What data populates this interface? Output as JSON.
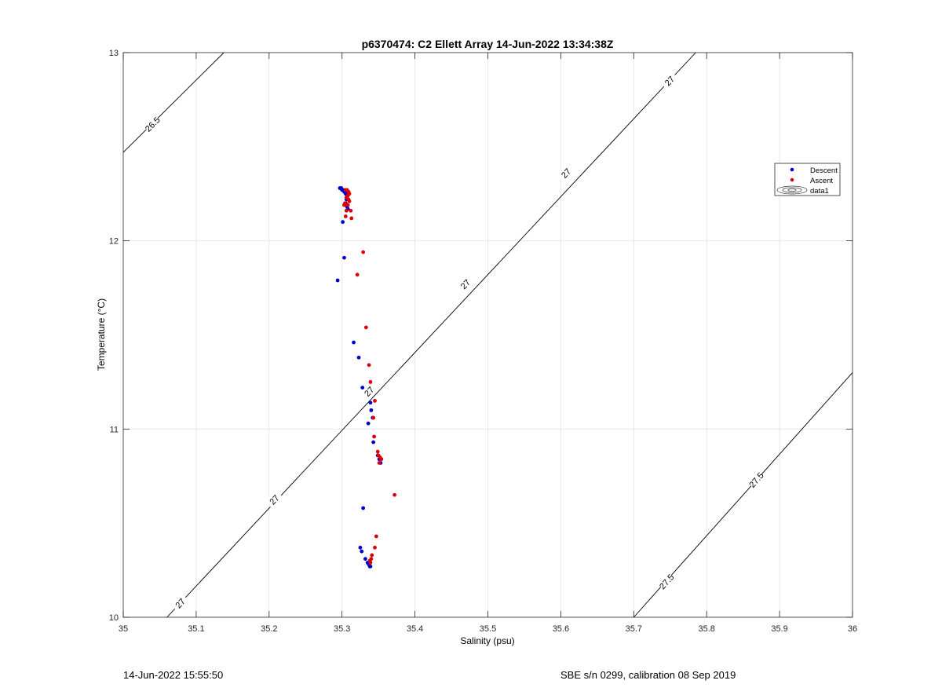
{
  "footer": {
    "timestamp": "14-Jun-2022 15:55:50",
    "instrument": "SBE s/n 0299, calibration 08 Sep 2019"
  },
  "chart_data": {
    "type": "scatter",
    "title": "p6370474: C2 Ellett Array 14-Jun-2022 13:34:38Z",
    "xlabel": "Salinity (psu)",
    "ylabel": "Temperature (°C)",
    "xlim": [
      35,
      36
    ],
    "ylim": [
      10,
      13
    ],
    "xticks": [
      35,
      35.1,
      35.2,
      35.3,
      35.4,
      35.5,
      35.6,
      35.7,
      35.8,
      35.9,
      36
    ],
    "xtick_labels": [
      "35",
      "35.1",
      "35.2",
      "35.3",
      "35.4",
      "35.5",
      "35.6",
      "35.7",
      "35.8",
      "35.9",
      "36"
    ],
    "yticks": [
      10,
      11,
      12,
      13
    ],
    "ytick_labels": [
      "10",
      "11",
      "12",
      "13"
    ],
    "grid": true,
    "legend_position": "top-right",
    "series": [
      {
        "name": "Descent",
        "color": "#0000cc",
        "x": [
          35.297,
          35.299,
          35.3,
          35.302,
          35.303,
          35.304,
          35.305,
          35.306,
          35.307,
          35.306,
          35.305,
          35.307,
          35.308,
          35.301,
          35.303,
          35.294,
          35.316,
          35.323,
          35.328,
          35.339,
          35.34,
          35.342,
          35.336,
          35.343,
          35.349,
          35.351,
          35.353,
          35.329,
          35.325,
          35.327,
          35.332,
          35.335,
          35.337,
          35.338,
          35.339,
          35.337
        ],
        "y": [
          12.28,
          12.28,
          12.27,
          12.27,
          12.26,
          12.26,
          12.25,
          12.25,
          12.24,
          12.22,
          12.2,
          12.18,
          12.17,
          12.1,
          11.91,
          11.79,
          11.46,
          11.38,
          11.22,
          11.14,
          11.1,
          11.06,
          11.03,
          10.93,
          10.86,
          10.84,
          10.82,
          10.58,
          10.37,
          10.35,
          10.31,
          10.29,
          10.28,
          10.27,
          10.27,
          10.28
        ]
      },
      {
        "name": "Ascent",
        "color": "#dd0000",
        "x": [
          35.305,
          35.307,
          35.309,
          35.31,
          35.308,
          35.306,
          35.309,
          35.31,
          35.304,
          35.303,
          35.308,
          35.306,
          35.312,
          35.305,
          35.313,
          35.329,
          35.321,
          35.333,
          35.337,
          35.339,
          35.345,
          35.343,
          35.344,
          35.349,
          35.35,
          35.352,
          35.354,
          35.351,
          35.372,
          35.347,
          35.345,
          35.341,
          35.34,
          35.338,
          35.339
        ],
        "y": [
          12.27,
          12.27,
          12.26,
          12.25,
          12.24,
          12.23,
          12.22,
          12.21,
          12.2,
          12.19,
          12.19,
          12.16,
          12.16,
          12.13,
          12.12,
          11.94,
          11.82,
          11.54,
          11.34,
          11.25,
          11.15,
          11.06,
          10.96,
          10.88,
          10.86,
          10.85,
          10.84,
          10.82,
          10.65,
          10.43,
          10.37,
          10.33,
          10.31,
          10.3,
          10.29
        ]
      }
    ],
    "legend_extra": "data1",
    "contours": [
      {
        "level": "26.5",
        "points": [
          [
            35.0,
            12.47
          ],
          [
            35.138,
            13.0
          ]
        ],
        "labels": [
          {
            "x": 35.04,
            "y": 12.62
          }
        ]
      },
      {
        "level": "27",
        "points": [
          [
            35.06,
            10.0
          ],
          [
            35.785,
            13.0
          ]
        ],
        "labels": [
          {
            "x": 35.078,
            "y": 10.075
          },
          {
            "x": 35.207,
            "y": 10.625
          },
          {
            "x": 35.337,
            "y": 11.2
          },
          {
            "x": 35.469,
            "y": 11.77
          },
          {
            "x": 35.607,
            "y": 12.36
          },
          {
            "x": 35.749,
            "y": 12.85
          }
        ]
      },
      {
        "level": "27.5",
        "points": [
          [
            35.7,
            10.0
          ],
          [
            36.0,
            11.3
          ]
        ],
        "labels": [
          {
            "x": 35.745,
            "y": 10.19
          },
          {
            "x": 35.868,
            "y": 10.73
          }
        ]
      }
    ]
  }
}
